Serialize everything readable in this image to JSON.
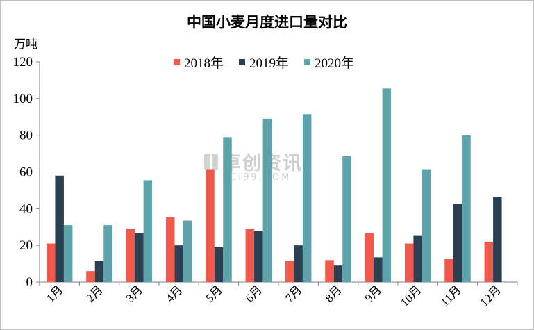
{
  "chart_data": {
    "type": "bar",
    "title": "中国小麦月度进口量对比",
    "ylabel": "万吨",
    "xlabel": "",
    "ylim": [
      0,
      120
    ],
    "yticks": [
      0,
      20,
      40,
      60,
      80,
      100,
      120
    ],
    "grid": false,
    "legend_position": "top",
    "categories": [
      "1月",
      "2月",
      "3月",
      "4月",
      "5月",
      "6月",
      "7月",
      "8月",
      "9月",
      "10月",
      "11月",
      "12月"
    ],
    "series": [
      {
        "name": "2018年",
        "color": "#f15a4a",
        "values": [
          21,
          6,
          29,
          35.5,
          61.5,
          29,
          11.5,
          12,
          26.5,
          21,
          12.5,
          22
        ]
      },
      {
        "name": "2019年",
        "color": "#2b3f53",
        "values": [
          58,
          11.5,
          26.5,
          20,
          19,
          28,
          20,
          9,
          13.5,
          25.5,
          42.5,
          46.5
        ]
      },
      {
        "name": "2020年",
        "color": "#5da3ac",
        "values": [
          31,
          31,
          55.5,
          33.5,
          79,
          89,
          91.5,
          68.5,
          105.5,
          61.5,
          80,
          null
        ]
      }
    ]
  },
  "watermark": {
    "text_cn": "卓创资讯",
    "text_en": "SCI99.COM"
  }
}
